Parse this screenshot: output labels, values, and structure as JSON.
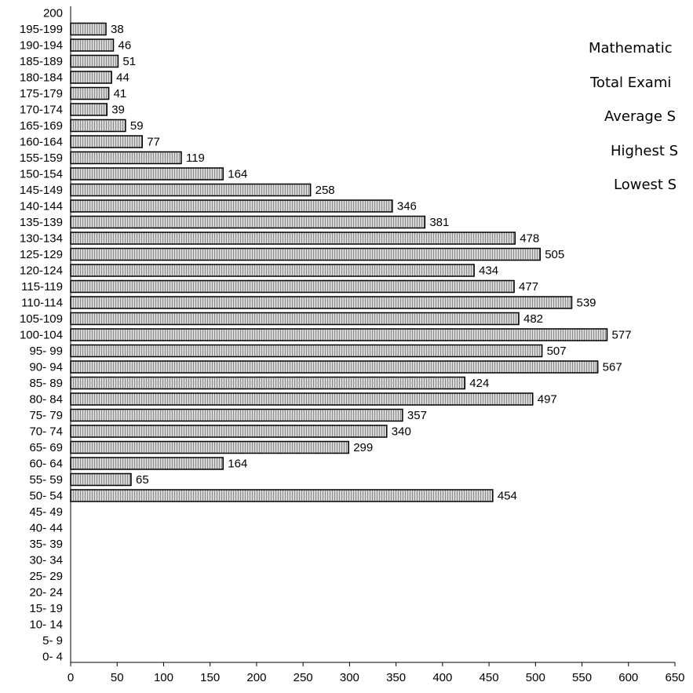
{
  "chart_data": {
    "type": "bar",
    "orientation": "horizontal",
    "categories": [
      "200",
      "195-199",
      "190-194",
      "185-189",
      "180-184",
      "175-179",
      "170-174",
      "165-169",
      "160-164",
      "155-159",
      "150-154",
      "145-149",
      "140-144",
      "135-139",
      "130-134",
      "125-129",
      "120-124",
      "115-119",
      "110-114",
      "105-109",
      "100-104",
      "95- 99",
      "90- 94",
      "85- 89",
      "80- 84",
      "75- 79",
      "70- 74",
      "65- 69",
      "60- 64",
      "55- 59",
      "50- 54",
      "45- 49",
      "40- 44",
      "35- 39",
      "30- 34",
      "25- 29",
      "20- 24",
      "15- 19",
      "10- 14",
      "5- 9",
      "0- 4"
    ],
    "values": [
      null,
      38,
      46,
      51,
      44,
      41,
      39,
      59,
      77,
      119,
      164,
      258,
      346,
      381,
      478,
      505,
      434,
      477,
      539,
      482,
      577,
      507,
      567,
      424,
      497,
      357,
      340,
      299,
      164,
      65,
      454,
      null,
      null,
      null,
      null,
      null,
      null,
      null,
      null,
      null,
      null
    ],
    "value_labels": [
      "",
      "38",
      "46",
      "51",
      "44",
      "41",
      "39",
      "59",
      "77",
      "119",
      "164",
      "258",
      "346",
      "381",
      "478",
      "505",
      "434",
      "477",
      "539",
      "482",
      "577",
      "507",
      "567",
      "424",
      "497",
      "357",
      "340",
      "299",
      "164",
      "65",
      "454",
      "",
      "",
      "",
      "",
      "",
      "",
      "",
      "",
      "",
      ""
    ],
    "xlim": [
      0,
      650
    ],
    "xticks": [
      0,
      50,
      100,
      150,
      200,
      250,
      300,
      350,
      400,
      450,
      500,
      550,
      600,
      650
    ],
    "xtick_labels": [
      "0",
      "50",
      "100",
      "150",
      "200",
      "250",
      "300",
      "350",
      "400",
      "450",
      "500",
      "550",
      "600",
      "650"
    ],
    "grid": false,
    "bar_fill": "#c8c8c8",
    "bar_stroke": "#000000",
    "info_text": [
      "Mathematic",
      "Total Exami",
      "Average S",
      "Highest S",
      "Lowest S"
    ]
  }
}
